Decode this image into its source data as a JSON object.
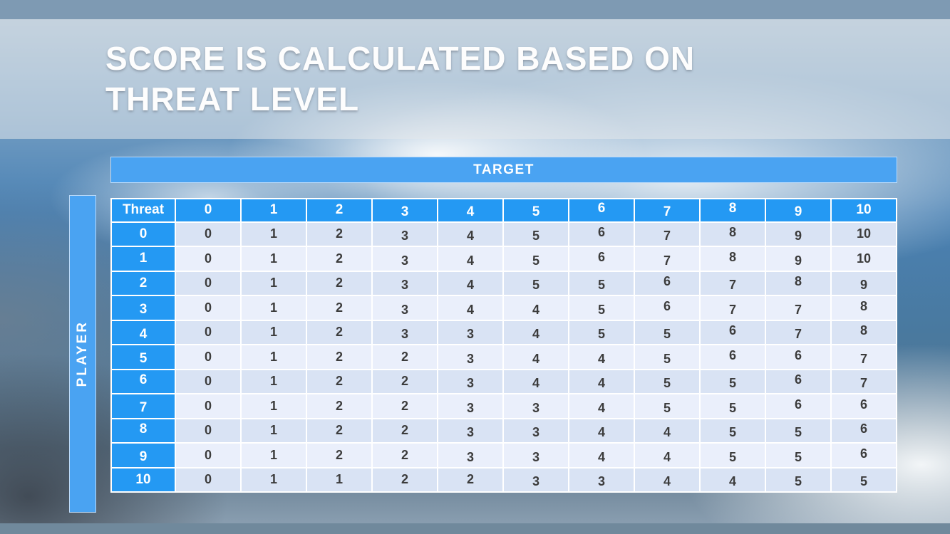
{
  "slide": {
    "title": {
      "line1": "SCORE IS CALCULATED BASED ON",
      "line2": "THREAT LEVEL"
    }
  },
  "table": {
    "target_label": "TARGET",
    "player_label": "PLAYER",
    "corner_label": "Threat",
    "column_headers": [
      "0",
      "1",
      "2",
      "3",
      "4",
      "5",
      "6",
      "7",
      "8",
      "9",
      "10"
    ],
    "rows": [
      {
        "header": "0",
        "cells": [
          "0",
          "1",
          "2",
          "3",
          "4",
          "5",
          "6",
          "7",
          "8",
          "9",
          "10"
        ]
      },
      {
        "header": "1",
        "cells": [
          "0",
          "1",
          "2",
          "3",
          "4",
          "5",
          "6",
          "7",
          "8",
          "9",
          "10"
        ]
      },
      {
        "header": "2",
        "cells": [
          "0",
          "1",
          "2",
          "3",
          "4",
          "5",
          "5",
          "6",
          "7",
          "8",
          "9"
        ]
      },
      {
        "header": "3",
        "cells": [
          "0",
          "1",
          "2",
          "3",
          "4",
          "4",
          "5",
          "6",
          "7",
          "7",
          "8"
        ]
      },
      {
        "header": "4",
        "cells": [
          "0",
          "1",
          "2",
          "3",
          "3",
          "4",
          "5",
          "5",
          "6",
          "7",
          "8"
        ]
      },
      {
        "header": "5",
        "cells": [
          "0",
          "1",
          "2",
          "2",
          "3",
          "4",
          "4",
          "5",
          "6",
          "6",
          "7"
        ]
      },
      {
        "header": "6",
        "cells": [
          "0",
          "1",
          "2",
          "2",
          "3",
          "4",
          "4",
          "5",
          "5",
          "6",
          "7"
        ]
      },
      {
        "header": "7",
        "cells": [
          "0",
          "1",
          "2",
          "2",
          "3",
          "3",
          "4",
          "5",
          "5",
          "6",
          "6"
        ]
      },
      {
        "header": "8",
        "cells": [
          "0",
          "1",
          "2",
          "2",
          "3",
          "3",
          "4",
          "4",
          "5",
          "5",
          "6"
        ]
      },
      {
        "header": "9",
        "cells": [
          "0",
          "1",
          "2",
          "2",
          "3",
          "3",
          "4",
          "4",
          "5",
          "5",
          "6"
        ]
      },
      {
        "header": "10",
        "cells": [
          "0",
          "1",
          "1",
          "2",
          "2",
          "3",
          "3",
          "4",
          "4",
          "5",
          "5"
        ]
      }
    ]
  },
  "colors": {
    "header_blue": "#2499f3",
    "bar_blue": "#4aa3f2",
    "band_even": "#d9e3f4",
    "band_odd": "#eaeffb",
    "cell_text": "#3c3c3c",
    "top_bar": "#7e9ab3",
    "bottom_bar": "#70899c",
    "title_text": "#fdfdfd"
  }
}
